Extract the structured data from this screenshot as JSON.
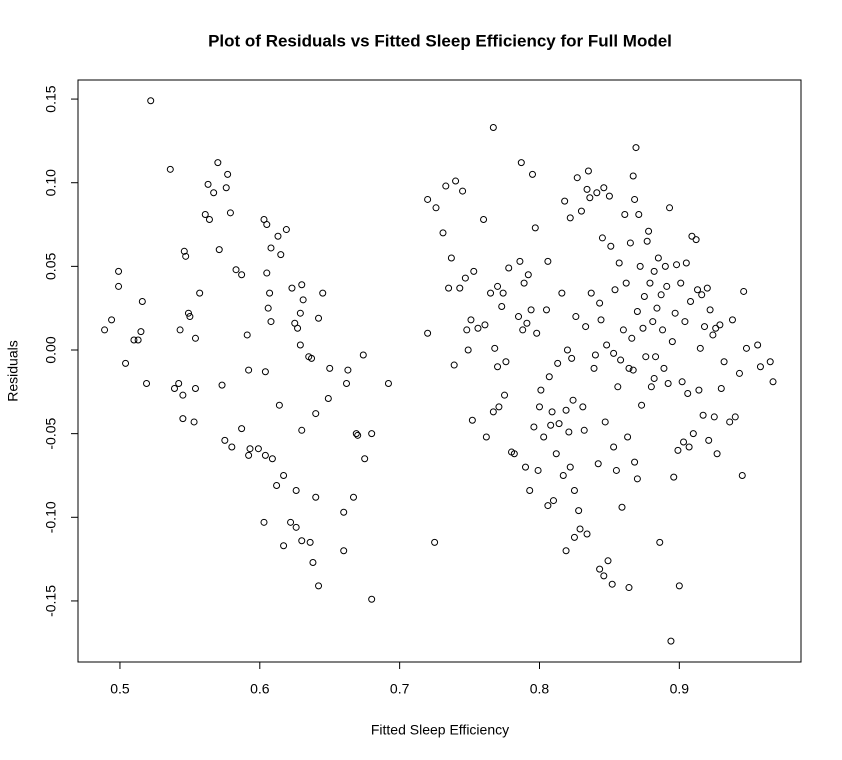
{
  "chart_data": {
    "type": "scatter",
    "title": "Plot of Residuals vs Fitted Sleep Efficiency for Full Model",
    "x_label": "Fitted Sleep Efficiency",
    "y_label": "Residuals",
    "color": "#000000",
    "xlim": [
      0.47,
      0.987
    ],
    "ylim": [
      -0.1865,
      0.1614
    ],
    "xticks": [
      0.5,
      0.6,
      0.7,
      0.8,
      0.9
    ],
    "yticks": [
      -0.15,
      {
        "value": -0.1,
        "label": "-0.10"
      },
      -0.05,
      {
        "value": 0,
        "label": "0.00"
      },
      0.05,
      {
        "value": 0.1,
        "label": "0.10"
      },
      0.15
    ],
    "x": [
      0.489,
      0.494,
      0.499,
      0.499,
      0.504,
      0.51,
      0.513,
      0.515,
      0.516,
      0.522,
      0.519,
      0.536,
      0.539,
      0.543,
      0.545,
      0.545,
      0.542,
      0.546,
      0.547,
      0.549,
      0.55,
      0.553,
      0.554,
      0.554,
      0.557,
      0.561,
      0.563,
      0.564,
      0.567,
      0.57,
      0.571,
      0.573,
      0.575,
      0.576,
      0.577,
      0.579,
      0.58,
      0.583,
      0.587,
      0.587,
      0.591,
      0.592,
      0.592,
      0.593,
      0.599,
      0.603,
      0.603,
      0.605,
      0.604,
      0.604,
      0.606,
      0.605,
      0.607,
      0.608,
      0.608,
      0.609,
      0.612,
      0.613,
      0.614,
      0.615,
      0.617,
      0.617,
      0.619,
      0.622,
      0.623,
      0.625,
      0.626,
      0.626,
      0.627,
      0.629,
      0.629,
      0.63,
      0.63,
      0.63,
      0.631,
      0.635,
      0.637,
      0.636,
      0.638,
      0.64,
      0.64,
      0.642,
      0.642,
      0.645,
      0.65,
      0.649,
      0.66,
      0.66,
      0.662,
      0.663,
      0.667,
      0.669,
      0.67,
      0.674,
      0.675,
      0.68,
      0.68,
      0.692,
      0.72,
      0.72,
      0.725,
      0.726,
      0.731,
      0.733,
      0.735,
      0.737,
      0.739,
      0.74,
      0.743,
      0.745,
      0.747,
      0.748,
      0.749,
      0.751,
      0.752,
      0.753,
      0.756,
      0.76,
      0.761,
      0.762,
      0.765,
      0.767,
      0.767,
      0.768,
      0.77,
      0.77,
      0.771,
      0.773,
      0.774,
      0.775,
      0.776,
      0.778,
      0.78,
      0.782,
      0.785,
      0.786,
      0.787,
      0.788,
      0.789,
      0.79,
      0.791,
      0.792,
      0.793,
      0.794,
      0.795,
      0.796,
      0.797,
      0.798,
      0.799,
      0.8,
      0.801,
      0.803,
      0.805,
      0.806,
      0.806,
      0.807,
      0.808,
      0.809,
      0.81,
      0.812,
      0.813,
      0.814,
      0.816,
      0.817,
      0.818,
      0.819,
      0.819,
      0.82,
      0.821,
      0.822,
      0.822,
      0.823,
      0.824,
      0.825,
      0.825,
      0.826,
      0.827,
      0.828,
      0.829,
      0.83,
      0.831,
      0.832,
      0.833,
      0.834,
      0.834,
      0.835,
      0.836,
      0.837,
      0.839,
      0.84,
      0.841,
      0.842,
      0.843,
      0.843,
      0.844,
      0.845,
      0.846,
      0.846,
      0.847,
      0.848,
      0.849,
      0.85,
      0.851,
      0.852,
      0.853,
      0.853,
      0.854,
      0.855,
      0.856,
      0.857,
      0.858,
      0.859,
      0.86,
      0.861,
      0.862,
      0.863,
      0.864,
      0.864,
      0.865,
      0.866,
      0.867,
      0.867,
      0.868,
      0.868,
      0.869,
      0.87,
      0.87,
      0.871,
      0.872,
      0.873,
      0.874,
      0.875,
      0.876,
      0.877,
      0.878,
      0.879,
      0.88,
      0.881,
      0.882,
      0.882,
      0.883,
      0.884,
      0.885,
      0.886,
      0.887,
      0.888,
      0.889,
      0.89,
      0.891,
      0.892,
      0.893,
      0.894,
      0.895,
      0.896,
      0.897,
      0.898,
      0.899,
      0.9,
      0.901,
      0.902,
      0.903,
      0.904,
      0.905,
      0.906,
      0.907,
      0.908,
      0.909,
      0.91,
      0.912,
      0.913,
      0.914,
      0.915,
      0.916,
      0.917,
      0.918,
      0.92,
      0.921,
      0.922,
      0.924,
      0.925,
      0.926,
      0.927,
      0.929,
      0.93,
      0.932,
      0.936,
      0.938,
      0.94,
      0.943,
      0.945,
      0.946,
      0.948,
      0.956,
      0.958,
      0.965,
      0.967
    ],
    "values": [
      0.012,
      0.018,
      0.038,
      0.047,
      -0.008,
      0.006,
      0.006,
      0.011,
      0.029,
      0.149,
      -0.02,
      0.108,
      -0.023,
      0.012,
      -0.041,
      -0.027,
      -0.02,
      0.059,
      0.056,
      0.022,
      0.02,
      -0.043,
      0.007,
      -0.023,
      0.034,
      0.081,
      0.099,
      0.078,
      0.094,
      0.112,
      0.06,
      -0.021,
      -0.054,
      0.097,
      0.105,
      0.082,
      -0.058,
      0.048,
      0.045,
      -0.047,
      0.009,
      -0.012,
      -0.063,
      -0.059,
      -0.059,
      -0.103,
      0.078,
      0.075,
      -0.013,
      -0.063,
      0.025,
      0.046,
      0.034,
      0.017,
      0.061,
      -0.065,
      -0.081,
      0.068,
      -0.033,
      0.057,
      -0.075,
      -0.117,
      0.072,
      -0.103,
      0.037,
      0.016,
      -0.106,
      -0.084,
      0.013,
      0.022,
      0.003,
      -0.048,
      -0.114,
      0.039,
      0.03,
      -0.004,
      -0.005,
      -0.115,
      -0.127,
      -0.088,
      -0.038,
      0.019,
      -0.141,
      0.034,
      -0.011,
      -0.029,
      -0.097,
      -0.12,
      -0.02,
      -0.012,
      -0.088,
      -0.05,
      -0.051,
      -0.003,
      -0.065,
      -0.05,
      -0.149,
      -0.02,
      0.09,
      0.01,
      -0.115,
      0.085,
      0.07,
      0.098,
      0.037,
      0.055,
      -0.009,
      0.101,
      0.037,
      0.095,
      0.043,
      0.012,
      0,
      0.018,
      -0.042,
      0.047,
      0.013,
      0.078,
      0.015,
      -0.052,
      0.034,
      0.133,
      -0.037,
      0.001,
      0.038,
      -0.01,
      -0.034,
      0.026,
      0.034,
      -0.027,
      -0.007,
      0.049,
      -0.061,
      -0.062,
      0.02,
      0.053,
      0.112,
      0.012,
      0.04,
      -0.07,
      0.016,
      0.045,
      -0.084,
      0.024,
      0.105,
      -0.046,
      0.073,
      0.01,
      -0.072,
      -0.034,
      -0.024,
      -0.052,
      0.024,
      0.053,
      -0.093,
      -0.016,
      -0.045,
      -0.037,
      -0.09,
      -0.062,
      -0.008,
      -0.044,
      0.034,
      -0.075,
      0.089,
      -0.036,
      -0.12,
      0,
      -0.049,
      -0.07,
      0.079,
      -0.005,
      -0.03,
      -0.084,
      -0.112,
      0.02,
      0.103,
      -0.096,
      -0.107,
      0.083,
      -0.034,
      -0.048,
      0.014,
      -0.11,
      0.096,
      0.107,
      0.091,
      0.034,
      -0.011,
      -0.003,
      0.094,
      -0.068,
      -0.131,
      0.028,
      0.018,
      0.067,
      -0.135,
      0.097,
      -0.043,
      0.003,
      -0.126,
      0.092,
      0.062,
      -0.14,
      -0.058,
      -0.002,
      0.036,
      -0.072,
      -0.022,
      0.052,
      -0.006,
      -0.094,
      0.012,
      0.081,
      0.04,
      -0.052,
      -0.142,
      -0.011,
      0.064,
      0.007,
      0.104,
      -0.012,
      -0.067,
      0.09,
      0.121,
      -0.077,
      0.023,
      0.081,
      0.05,
      -0.033,
      0.013,
      0.032,
      -0.004,
      0.065,
      0.071,
      0.04,
      -0.022,
      0.017,
      0.047,
      -0.017,
      -0.004,
      0.025,
      0.055,
      -0.115,
      0.033,
      0.012,
      -0.011,
      0.05,
      0.038,
      -0.02,
      0.085,
      -0.174,
      0.005,
      -0.076,
      0.022,
      0.051,
      -0.06,
      -0.141,
      0.04,
      -0.019,
      -0.055,
      0.017,
      0.052,
      -0.026,
      -0.058,
      0.029,
      0.068,
      -0.05,
      0.066,
      0.036,
      -0.024,
      0.001,
      0.033,
      -0.039,
      0.014,
      0.037,
      -0.054,
      0.024,
      0.009,
      -0.04,
      0.013,
      -0.062,
      0.015,
      -0.023,
      -0.007,
      -0.043,
      0.018,
      -0.04,
      -0.014,
      -0.075,
      0.035,
      0.001,
      0.003,
      -0.01,
      -0.007,
      -0.019
    ]
  }
}
